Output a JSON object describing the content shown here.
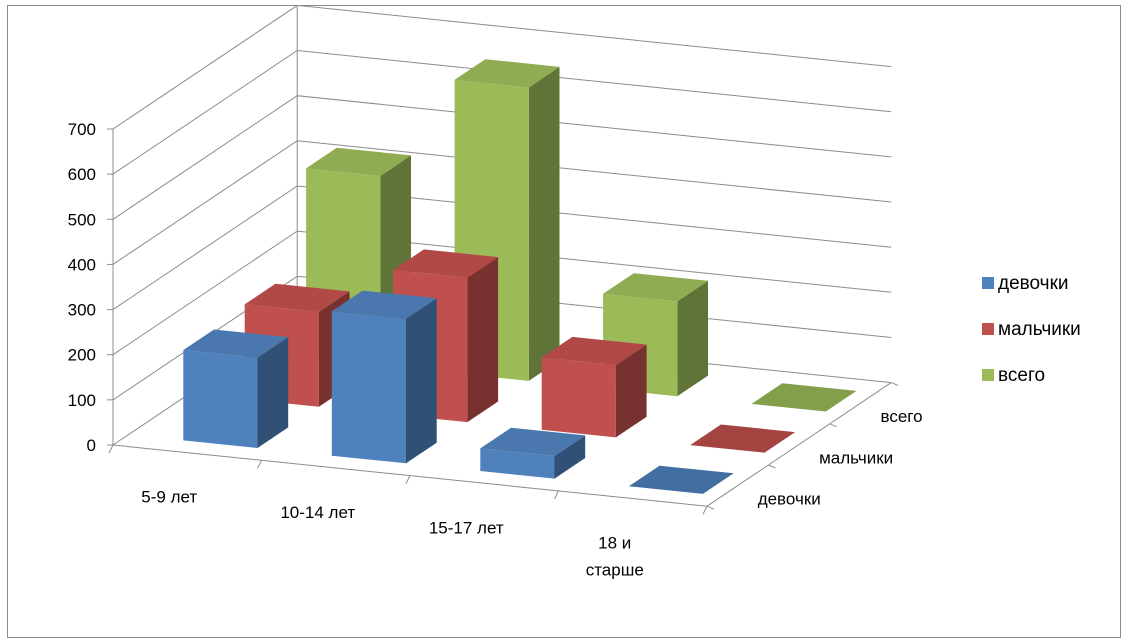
{
  "chart_data": {
    "type": "bar",
    "subtype": "3d-column",
    "categories": [
      "5-9 лет",
      "10-14 лет",
      "15-17 лет",
      "18 и старше"
    ],
    "category_labels": [
      [
        "5-9 лет"
      ],
      [
        "10-14 лет"
      ],
      [
        "15-17 лет"
      ],
      [
        "18 и",
        "старше"
      ]
    ],
    "series": [
      {
        "name": "девочки",
        "color": "#4f81bd",
        "values": [
          200,
          320,
          50,
          0
        ]
      },
      {
        "name": "мальчики",
        "color": "#c0504d",
        "values": [
          210,
          320,
          160,
          0
        ]
      },
      {
        "name": "всего",
        "color": "#9bbb59",
        "values": [
          420,
          650,
          210,
          0
        ]
      }
    ],
    "y_ticks": [
      "0",
      "100",
      "200",
      "300",
      "400",
      "500",
      "600",
      "700"
    ],
    "ylim": [
      0,
      700
    ],
    "grid": true,
    "legend_position": "right"
  }
}
